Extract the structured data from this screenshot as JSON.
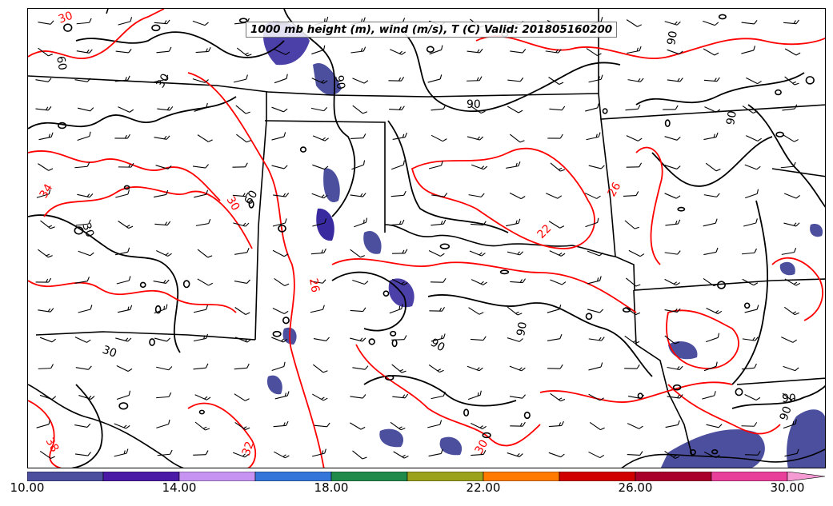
{
  "title": "1000 mb height (m), wind (m/s), T (C) Valid: 201805160200",
  "colorbar": {
    "ticks": [
      "10.00",
      "14.00",
      "18.00",
      "22.00",
      "26.00",
      "30.00"
    ],
    "colors": [
      "#4b4f9e",
      "#4a1aa6",
      "#c693f2",
      "#3475d9",
      "#1f8a4a",
      "#9aa11a",
      "#ff7a00",
      "#d10000",
      "#a8002a",
      "#e8409a",
      "#f59ad2"
    ]
  },
  "contour_labels": {
    "temperature": [
      "30",
      "34",
      "30",
      "38",
      "32",
      "26",
      "30",
      "22",
      "26"
    ],
    "height": [
      "60",
      "90",
      "30",
      "60",
      "30",
      "90",
      "90",
      "90",
      "90",
      "90",
      "30",
      "90",
      "90"
    ]
  },
  "colors": {
    "temperature_contour": "#ff0000",
    "height_contour": "#000000",
    "state_border": "#000000"
  }
}
